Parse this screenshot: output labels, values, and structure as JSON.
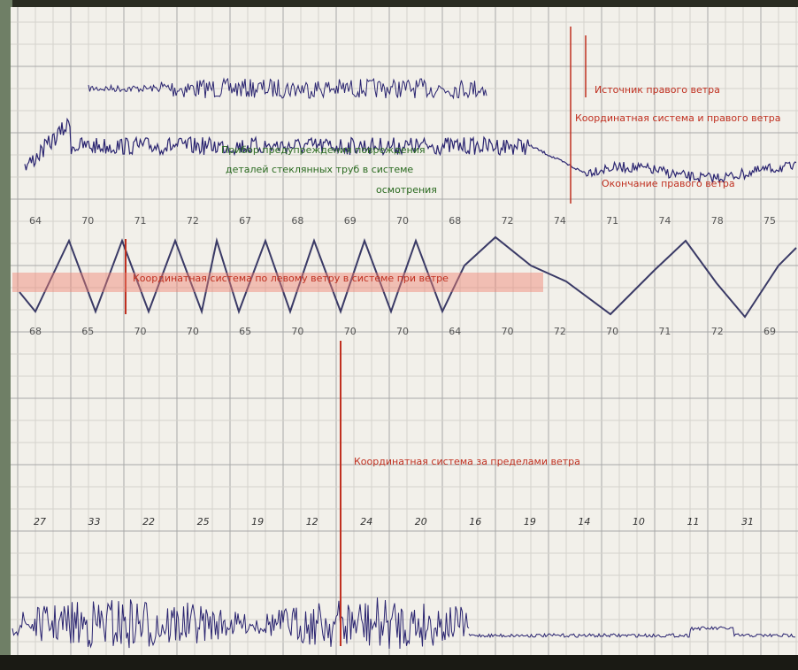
{
  "annotations": {
    "right_top": "Источник правого ветра",
    "right_mid": "Координатная система и правого ветра",
    "right_bottom": "Окончание правого ветра",
    "green_1": "Прибор предупреждения повреждения",
    "green_2": "деталей стеклянных труб в системе",
    "green_3": "осмотрения",
    "red_middle": "Координатная система по левому ветру в системе при ветре",
    "red_lower": "Координатная система за пределами ветра"
  },
  "scale_top": [
    "64",
    "70",
    "71",
    "72",
    "67",
    "68",
    "69",
    "70",
    "68",
    "72",
    "74",
    "71",
    "74",
    "78",
    "75"
  ],
  "scale_bottom": [
    "68",
    "65",
    "70",
    "70",
    "65",
    "70",
    "70",
    "70",
    "64",
    "70",
    "72",
    "70",
    "71",
    "72",
    "69"
  ],
  "speeds": [
    "27",
    "33",
    "22",
    "25",
    "19",
    "12",
    "24",
    "20",
    "16",
    "19",
    "14",
    "10",
    "11",
    "31"
  ]
}
